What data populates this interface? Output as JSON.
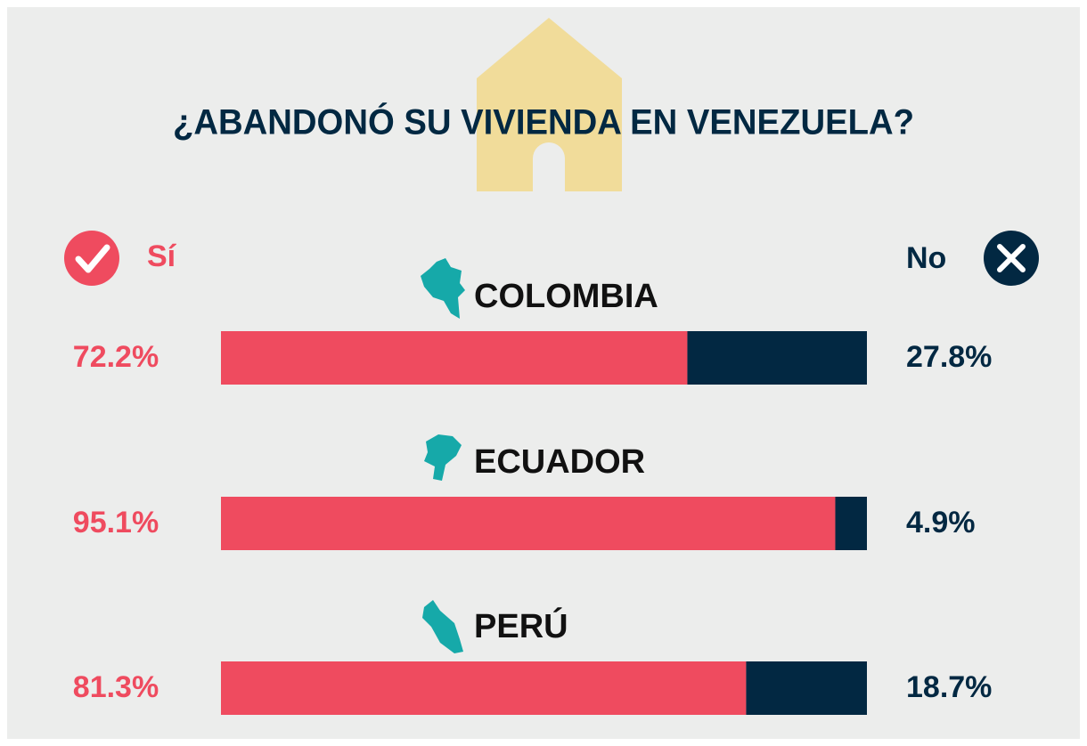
{
  "chart_data": {
    "type": "stacked-bar-horizontal",
    "title": "¿ABANDONÓ SU VIVIENDA EN VENEZUELA?",
    "categories": [
      "COLOMBIA",
      "ECUADOR",
      "PERÚ"
    ],
    "series": [
      {
        "name": "Sí",
        "color": "#ef4b5f",
        "values": [
          72.2,
          95.1,
          81.3
        ],
        "value_labels": [
          "72.2%",
          "95.1%",
          "81.3%"
        ]
      },
      {
        "name": "No",
        "color": "#022842",
        "values": [
          27.8,
          4.9,
          18.7
        ],
        "value_labels": [
          "27.8%",
          "4.9%",
          "18.7%"
        ]
      }
    ],
    "xlim": [
      0,
      100
    ]
  }
}
